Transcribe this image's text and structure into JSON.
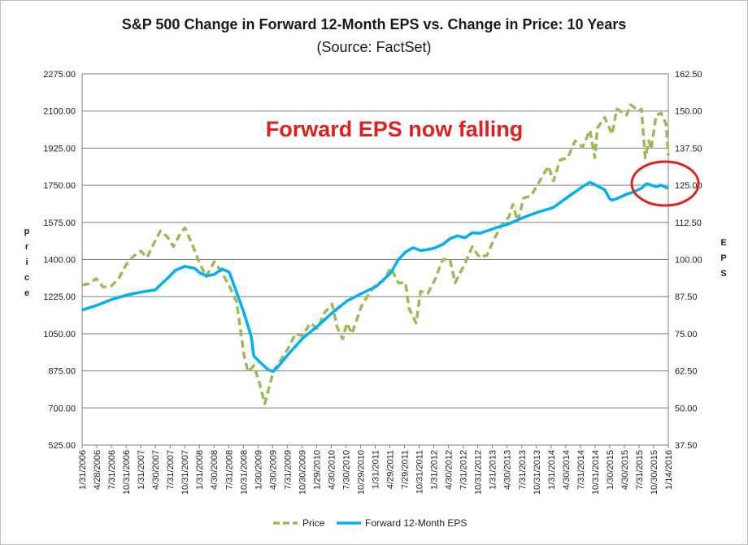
{
  "chart_data": {
    "type": "line",
    "title": "S&P 500 Change in Forward 12-Month EPS vs. Change in Price: 10 Years",
    "subtitle": "(Source: FactSet)",
    "annotation": "Forward EPS now falling",
    "ylabel_left": "Price",
    "ylabel_right": "EPS",
    "ylim_left": [
      525,
      2275
    ],
    "ylim_right": [
      37.5,
      162.5
    ],
    "y_ticks_left": [
      "525.00",
      "700.00",
      "875.00",
      "1050.00",
      "1225.00",
      "1400.00",
      "1575.00",
      "1750.00",
      "1925.00",
      "2100.00",
      "2275.00"
    ],
    "y_ticks_right": [
      "37.50",
      "50.00",
      "62.50",
      "75.00",
      "87.50",
      "100.00",
      "112.50",
      "125.00",
      "137.50",
      "150.00",
      "162.50"
    ],
    "x_ticks": [
      "1/31/2006",
      "4/28/2006",
      "7/31/2006",
      "10/31/2006",
      "1/31/2007",
      "4/30/2007",
      "7/31/2007",
      "10/31/2007",
      "1/31/2008",
      "4/30/2008",
      "7/31/2008",
      "10/31/2008",
      "1/30/2009",
      "4/30/2009",
      "7/31/2009",
      "10/30/2009",
      "1/29/2010",
      "4/30/2010",
      "7/30/2010",
      "10/29/2010",
      "1/31/2011",
      "4/29/2011",
      "7/29/2011",
      "10/31/2011",
      "1/31/2012",
      "4/30/2012",
      "7/31/2012",
      "10/31/2012",
      "1/31/2013",
      "4/30/2013",
      "7/31/2013",
      "10/31/2013",
      "1/31/2014",
      "4/30/2014",
      "7/31/2014",
      "10/31/2014",
      "1/30/2015",
      "4/30/2015",
      "7/31/2015",
      "10/30/2015",
      "1/14/2016"
    ],
    "grid": true,
    "legend_position": "bottom",
    "x_start": "2006-01-31",
    "x_end": "2016-01-14",
    "series": [
      {
        "name": "Price",
        "axis": "left",
        "color": "#9bbb59",
        "dash": true,
        "points": [
          [
            "2006-01-31",
            1280
          ],
          [
            "2006-03-15",
            1285
          ],
          [
            "2006-04-28",
            1310
          ],
          [
            "2006-06-10",
            1270
          ],
          [
            "2006-07-31",
            1275
          ],
          [
            "2006-09-15",
            1310
          ],
          [
            "2006-10-31",
            1375
          ],
          [
            "2006-12-15",
            1415
          ],
          [
            "2007-01-31",
            1440
          ],
          [
            "2007-03-10",
            1410
          ],
          [
            "2007-04-30",
            1490
          ],
          [
            "2007-06-01",
            1535
          ],
          [
            "2007-07-15",
            1505
          ],
          [
            "2007-08-20",
            1460
          ],
          [
            "2007-09-30",
            1520
          ],
          [
            "2007-10-31",
            1550
          ],
          [
            "2007-12-15",
            1470
          ],
          [
            "2008-01-31",
            1380
          ],
          [
            "2008-03-10",
            1320
          ],
          [
            "2008-04-30",
            1390
          ],
          [
            "2008-06-15",
            1340
          ],
          [
            "2008-07-31",
            1275
          ],
          [
            "2008-09-15",
            1200
          ],
          [
            "2008-10-31",
            950
          ],
          [
            "2008-11-25",
            870
          ],
          [
            "2008-12-31",
            900
          ],
          [
            "2009-01-30",
            830
          ],
          [
            "2009-03-09",
            720
          ],
          [
            "2009-04-30",
            870
          ],
          [
            "2009-06-15",
            925
          ],
          [
            "2009-07-31",
            980
          ],
          [
            "2009-09-15",
            1050
          ],
          [
            "2009-10-30",
            1040
          ],
          [
            "2009-12-15",
            1100
          ],
          [
            "2010-01-29",
            1075
          ],
          [
            "2010-03-15",
            1150
          ],
          [
            "2010-04-30",
            1190
          ],
          [
            "2010-06-01",
            1080
          ],
          [
            "2010-07-05",
            1025
          ],
          [
            "2010-07-30",
            1100
          ],
          [
            "2010-08-31",
            1050
          ],
          [
            "2010-10-29",
            1180
          ],
          [
            "2010-12-15",
            1240
          ],
          [
            "2011-01-31",
            1285
          ],
          [
            "2011-03-15",
            1300
          ],
          [
            "2011-04-29",
            1360
          ],
          [
            "2011-06-15",
            1290
          ],
          [
            "2011-07-29",
            1290
          ],
          [
            "2011-08-20",
            1170
          ],
          [
            "2011-10-03",
            1100
          ],
          [
            "2011-10-31",
            1250
          ],
          [
            "2011-12-15",
            1240
          ],
          [
            "2012-01-31",
            1310
          ],
          [
            "2012-03-15",
            1400
          ],
          [
            "2012-04-30",
            1400
          ],
          [
            "2012-06-01",
            1290
          ],
          [
            "2012-07-31",
            1380
          ],
          [
            "2012-09-15",
            1460
          ],
          [
            "2012-10-31",
            1410
          ],
          [
            "2012-12-15",
            1420
          ],
          [
            "2013-01-31",
            1500
          ],
          [
            "2013-03-15",
            1560
          ],
          [
            "2013-04-30",
            1600
          ],
          [
            "2013-05-25",
            1660
          ],
          [
            "2013-06-24",
            1580
          ],
          [
            "2013-07-31",
            1690
          ],
          [
            "2013-09-15",
            1700
          ],
          [
            "2013-10-31",
            1760
          ],
          [
            "2013-12-31",
            1840
          ],
          [
            "2014-01-31",
            1770
          ],
          [
            "2014-03-15",
            1870
          ],
          [
            "2014-04-30",
            1880
          ],
          [
            "2014-06-15",
            1960
          ],
          [
            "2014-07-31",
            1930
          ],
          [
            "2014-09-15",
            2010
          ],
          [
            "2014-10-15",
            1880
          ],
          [
            "2014-10-31",
            2020
          ],
          [
            "2014-12-15",
            2070
          ],
          [
            "2015-01-30",
            1990
          ],
          [
            "2015-03-01",
            2110
          ],
          [
            "2015-04-30",
            2080
          ],
          [
            "2015-05-25",
            2130
          ],
          [
            "2015-07-15",
            2100
          ],
          [
            "2015-07-31",
            2110
          ],
          [
            "2015-08-24",
            1880
          ],
          [
            "2015-09-15",
            1960
          ],
          [
            "2015-09-30",
            1920
          ],
          [
            "2015-10-30",
            2080
          ],
          [
            "2015-11-30",
            2090
          ],
          [
            "2015-12-31",
            2040
          ],
          [
            "2016-01-14",
            1890
          ]
        ]
      },
      {
        "name": "Forward 12-Month EPS",
        "axis": "right",
        "color": "#00b0f0",
        "dash": false,
        "points": [
          [
            "2006-01-31",
            83.0
          ],
          [
            "2006-04-28",
            84.5
          ],
          [
            "2006-07-31",
            86.5
          ],
          [
            "2006-10-31",
            88.0
          ],
          [
            "2007-01-31",
            89.0
          ],
          [
            "2007-04-30",
            89.8
          ],
          [
            "2007-06-01",
            91.5
          ],
          [
            "2007-07-31",
            94.5
          ],
          [
            "2007-08-31",
            96.3
          ],
          [
            "2007-10-31",
            97.7
          ],
          [
            "2007-12-31",
            97.0
          ],
          [
            "2008-01-31",
            95.5
          ],
          [
            "2008-03-15",
            94.5
          ],
          [
            "2008-04-30",
            95.0
          ],
          [
            "2008-06-15",
            96.8
          ],
          [
            "2008-07-31",
            95.8
          ],
          [
            "2008-09-15",
            89.0
          ],
          [
            "2008-10-31",
            82.0
          ],
          [
            "2008-12-15",
            74.0
          ],
          [
            "2008-12-31",
            67.5
          ],
          [
            "2009-02-15",
            65.0
          ],
          [
            "2009-03-31",
            62.8
          ],
          [
            "2009-04-30",
            62.3
          ],
          [
            "2009-05-31",
            64.0
          ],
          [
            "2009-07-31",
            68.0
          ],
          [
            "2009-10-30",
            73.5
          ],
          [
            "2010-01-29",
            77.5
          ],
          [
            "2010-04-30",
            82.0
          ],
          [
            "2010-07-30",
            86.0
          ],
          [
            "2010-10-29",
            88.5
          ],
          [
            "2011-01-31",
            91.0
          ],
          [
            "2011-04-29",
            95.5
          ],
          [
            "2011-06-15",
            100.0
          ],
          [
            "2011-07-29",
            102.5
          ],
          [
            "2011-09-15",
            104.0
          ],
          [
            "2011-10-31",
            103.0
          ],
          [
            "2011-12-31",
            103.5
          ],
          [
            "2012-01-31",
            104.0
          ],
          [
            "2012-03-15",
            105.0
          ],
          [
            "2012-04-30",
            107.0
          ],
          [
            "2012-06-15",
            108.0
          ],
          [
            "2012-07-31",
            107.3
          ],
          [
            "2012-09-15",
            109.0
          ],
          [
            "2012-10-31",
            108.8
          ],
          [
            "2013-01-31",
            110.5
          ],
          [
            "2013-04-30",
            112.0
          ],
          [
            "2013-07-31",
            114.2
          ],
          [
            "2013-10-31",
            116.0
          ],
          [
            "2014-01-31",
            117.5
          ],
          [
            "2014-04-30",
            121.0
          ],
          [
            "2014-07-31",
            124.5
          ],
          [
            "2014-09-15",
            126.0
          ],
          [
            "2014-10-31",
            124.8
          ],
          [
            "2014-12-15",
            123.5
          ],
          [
            "2015-01-15",
            120.5
          ],
          [
            "2015-01-30",
            120.0
          ],
          [
            "2015-03-01",
            120.5
          ],
          [
            "2015-04-30",
            122.0
          ],
          [
            "2015-06-01",
            122.5
          ],
          [
            "2015-07-31",
            124.0
          ],
          [
            "2015-08-31",
            125.5
          ],
          [
            "2015-09-15",
            125.3
          ],
          [
            "2015-10-30",
            124.5
          ],
          [
            "2015-11-30",
            125.0
          ],
          [
            "2015-12-31",
            124.3
          ],
          [
            "2016-01-14",
            124.0
          ]
        ]
      }
    ]
  }
}
